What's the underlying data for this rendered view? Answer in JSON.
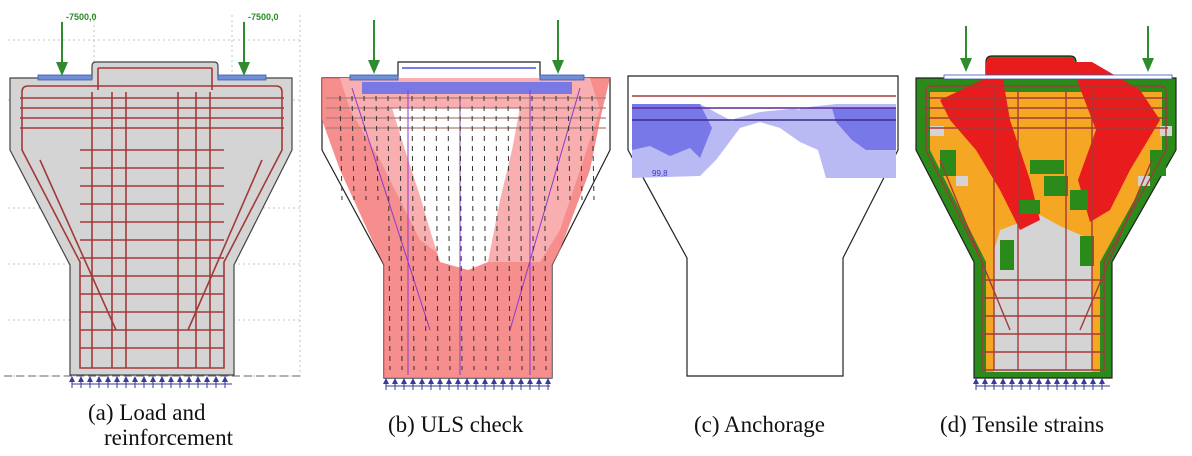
{
  "panels": [
    {
      "id": "a",
      "caption_line1": "(a)  Load and",
      "caption_line2": "reinforcement",
      "load_left": "-7500,0",
      "load_right": "-7500,0"
    },
    {
      "id": "b",
      "caption_line1": "(b)  ULS check"
    },
    {
      "id": "c",
      "caption_line1": "(c)  Anchorage",
      "anchorage_value": "99,8"
    },
    {
      "id": "d",
      "caption_line1": "(d)  Tensile strains"
    }
  ],
  "colors": {
    "concrete_gray": "#d4d4d4",
    "rebar": "#a33a3a",
    "load_arrow": "#2e8b2e",
    "plate": "#6f8fd8",
    "uls_red": "#f47a7a",
    "anchorage_blue": "#8a8af0",
    "strain_red": "#e81c1c",
    "strain_orange": "#f5a623",
    "strain_green": "#2a8a1a"
  },
  "icons": [
    "support-arrow-icon",
    "load-arrow-icon"
  ]
}
